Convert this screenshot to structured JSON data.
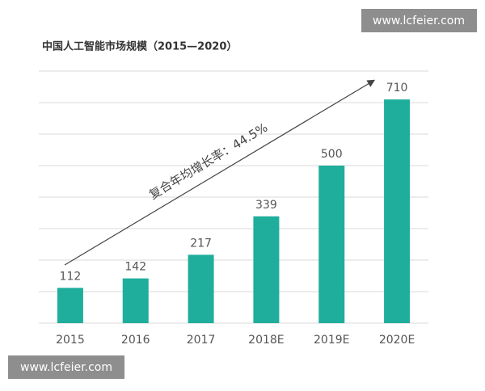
{
  "chart_data": {
    "type": "bar",
    "title": "中国人工智能市场规模（2015—2020）",
    "categories": [
      "2015",
      "2016",
      "2017",
      "2018E",
      "2019E",
      "2020E"
    ],
    "values": [
      112,
      142,
      217,
      339,
      500,
      710
    ],
    "color": "#1fae9c",
    "ylim": [
      0,
      800
    ],
    "yticks": [
      0,
      100,
      200,
      300,
      400,
      500,
      600,
      700,
      800
    ],
    "grid": true,
    "annotation": "复合年均增长率：44.5%"
  },
  "watermarks": [
    "www.lcfeier.com",
    "www.lcfeier.com"
  ]
}
